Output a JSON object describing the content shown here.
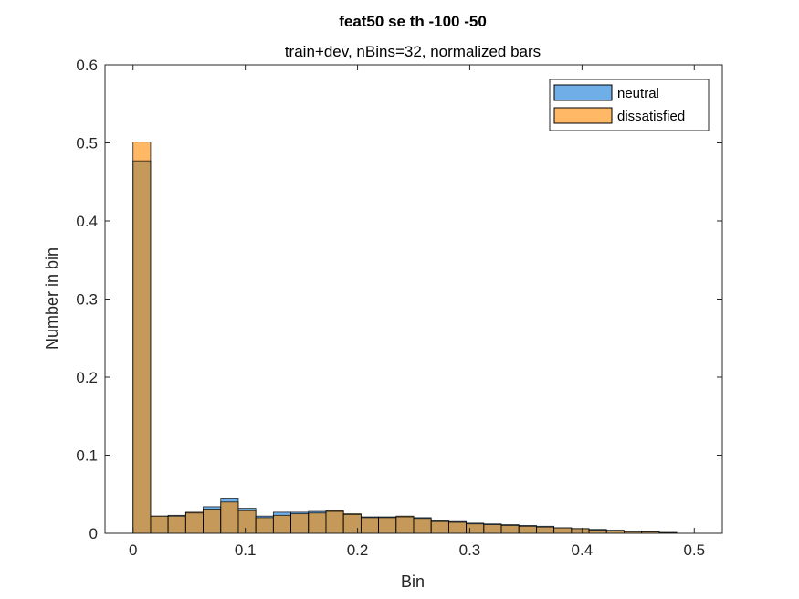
{
  "chart_data": {
    "type": "bar",
    "title": "feat50 se th -100 -50",
    "subtitle": "train+dev, nBins=32, normalized bars",
    "xlabel": "Bin",
    "ylabel": "Number in bin",
    "xlim": [
      -0.025,
      0.525
    ],
    "ylim": [
      0,
      0.6
    ],
    "xticks": [
      "0",
      "0.1",
      "0.2",
      "0.3",
      "0.4",
      "0.5"
    ],
    "yticks": [
      "0",
      "0.1",
      "0.2",
      "0.3",
      "0.4",
      "0.5",
      "0.6"
    ],
    "bin_edges": [
      0,
      0.01563,
      0.03125,
      0.04688,
      0.0625,
      0.07813,
      0.09375,
      0.10938,
      0.125,
      0.14063,
      0.15625,
      0.17188,
      0.1875,
      0.20313,
      0.21875,
      0.23438,
      0.25,
      0.26563,
      0.28125,
      0.29688,
      0.3125,
      0.32813,
      0.34375,
      0.35938,
      0.375,
      0.39063,
      0.40625,
      0.42188,
      0.4375,
      0.45313,
      0.46875,
      0.48438,
      0.5
    ],
    "series": [
      {
        "name": "neutral",
        "color": "#0072BD",
        "values": [
          0.477,
          0.022,
          0.023,
          0.026,
          0.034,
          0.045,
          0.032,
          0.022,
          0.027,
          0.027,
          0.028,
          0.028,
          0.024,
          0.021,
          0.021,
          0.021,
          0.02,
          0.016,
          0.015,
          0.013,
          0.012,
          0.011,
          0.01,
          0.009,
          0.007,
          0.006,
          0.005,
          0.004,
          0.003,
          0.002,
          0.001,
          0
        ]
      },
      {
        "name": "dissatisfied",
        "color": "#EDB120",
        "values": [
          0.501,
          0.022,
          0.022,
          0.027,
          0.031,
          0.04,
          0.029,
          0.02,
          0.023,
          0.025,
          0.026,
          0.029,
          0.025,
          0.02,
          0.02,
          0.022,
          0.019,
          0.015,
          0.014,
          0.012,
          0.011,
          0.01,
          0.009,
          0.008,
          0.007,
          0.006,
          0.004,
          0.003,
          0.002,
          0.002,
          0.001,
          0
        ]
      }
    ],
    "legend": {
      "position": "top-right",
      "entries": [
        "neutral",
        "dissatisfied"
      ]
    },
    "grid": false
  },
  "colors": {
    "neutral_fill": "#6FAEE6",
    "dissatisfied_fill": "#FFB866",
    "overlap_fill": "#C4995A",
    "edge": "#000000"
  }
}
